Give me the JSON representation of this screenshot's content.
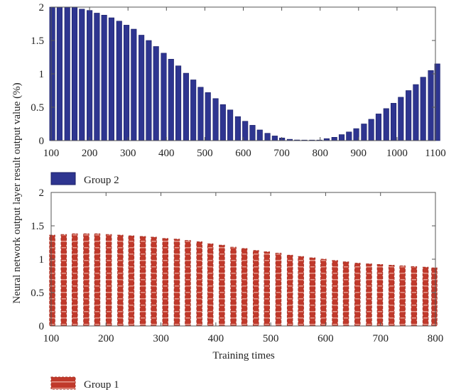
{
  "ylabel": "Neural network output layer result output value (%)",
  "chart_data": [
    {
      "type": "bar",
      "series": [
        {
          "name": "Group 2",
          "color": "#2e3590"
        }
      ],
      "xlabel": "",
      "xlim": [
        100,
        1100
      ],
      "ylim": [
        0,
        2
      ],
      "xticks": [
        100,
        200,
        300,
        400,
        500,
        600,
        700,
        800,
        900,
        1000,
        1100
      ],
      "yticks": [
        0,
        0.5,
        1,
        1.5,
        2
      ],
      "ytick_labels": [
        "0",
        "0.5",
        "1",
        "1.5",
        "2"
      ],
      "x": [
        103,
        122,
        142,
        161,
        180,
        200,
        219,
        238,
        257,
        277,
        296,
        315,
        335,
        354,
        373,
        393,
        412,
        431,
        451,
        470,
        489,
        508,
        528,
        547,
        566,
        586,
        605,
        624,
        643,
        663,
        682,
        701,
        721,
        740,
        759,
        779,
        798,
        817,
        837,
        856,
        875,
        894,
        914,
        933,
        952,
        972,
        991,
        1010,
        1030,
        1049,
        1068,
        1088,
        1105
      ],
      "values": [
        2.0,
        2.0,
        2.0,
        2.0,
        1.97,
        1.95,
        1.91,
        1.88,
        1.84,
        1.79,
        1.73,
        1.67,
        1.58,
        1.5,
        1.41,
        1.31,
        1.22,
        1.12,
        1.01,
        0.91,
        0.8,
        0.72,
        0.63,
        0.54,
        0.46,
        0.36,
        0.29,
        0.23,
        0.16,
        0.11,
        0.07,
        0.04,
        0.02,
        0.01,
        0.005,
        0.005,
        0.005,
        0.03,
        0.05,
        0.09,
        0.13,
        0.18,
        0.25,
        0.32,
        0.4,
        0.48,
        0.56,
        0.65,
        0.75,
        0.84,
        0.95,
        1.05,
        1.15
      ]
    },
    {
      "type": "bar",
      "series": [
        {
          "name": "Group 1",
          "color": "#c0392b"
        }
      ],
      "xlabel": "Training times",
      "xlim": [
        100,
        800
      ],
      "ylim": [
        0,
        2
      ],
      "xticks": [
        100,
        200,
        300,
        400,
        500,
        600,
        700,
        800
      ],
      "yticks": [
        0,
        0.5,
        1,
        1.5,
        2
      ],
      "ytick_labels": [
        "0",
        "0.5",
        "1",
        "1.5",
        "2"
      ],
      "x": [
        102,
        123,
        143,
        164,
        184,
        205,
        226,
        246,
        267,
        287,
        308,
        329,
        349,
        370,
        390,
        411,
        432,
        452,
        473,
        493,
        514,
        535,
        555,
        576,
        596,
        617,
        637,
        658,
        679,
        699,
        720,
        740,
        761,
        782,
        798
      ],
      "values": [
        1.36,
        1.37,
        1.38,
        1.38,
        1.38,
        1.37,
        1.36,
        1.35,
        1.34,
        1.33,
        1.31,
        1.3,
        1.28,
        1.26,
        1.23,
        1.21,
        1.18,
        1.16,
        1.13,
        1.11,
        1.09,
        1.06,
        1.04,
        1.02,
        1.0,
        0.98,
        0.96,
        0.94,
        0.93,
        0.92,
        0.91,
        0.9,
        0.89,
        0.88,
        0.87
      ]
    }
  ]
}
